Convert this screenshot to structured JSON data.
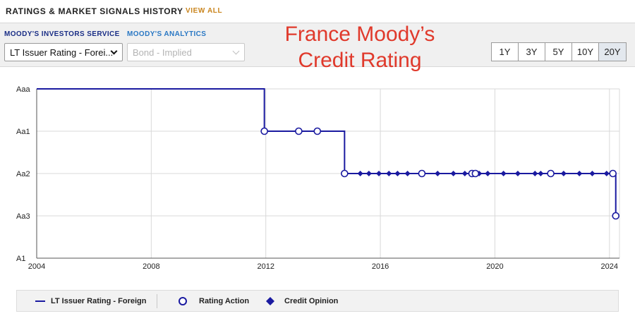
{
  "header": {
    "title": "RATINGS & MARKET SIGNALS HISTORY",
    "view_all": "VIEW ALL"
  },
  "filters": {
    "investors_label": "MOODY'S INVESTORS SERVICE",
    "analytics_label": "MOODY'S ANALYTICS",
    "rating_select": "LT Issuer Rating - Forei...",
    "market_select": "Bond - Implied"
  },
  "overlay": {
    "line1": "France Moody’s",
    "line2": "Credit Rating"
  },
  "periods": [
    "1Y",
    "3Y",
    "5Y",
    "10Y",
    "20Y"
  ],
  "active_period": "20Y",
  "colors": {
    "series": "#1a1aa0",
    "accent": "#c9841c",
    "annotation": "#e0392b",
    "grid": "#d9d9d9"
  },
  "chart_data": {
    "type": "line",
    "y_categories": [
      "Aaa",
      "Aa1",
      "Aa2",
      "Aa3",
      "A1"
    ],
    "x_ticks": [
      "2004",
      "2008",
      "2012",
      "2016",
      "2020",
      "2024"
    ],
    "xlim": [
      2004.0,
      2024.35
    ],
    "grid": true,
    "legend_position": "bottom",
    "series": [
      {
        "name": "LT Issuer Rating - Foreign",
        "step_points": [
          {
            "x": 2004.0,
            "y": "Aaa"
          },
          {
            "x": 2011.95,
            "y": "Aaa"
          },
          {
            "x": 2011.95,
            "y": "Aa1"
          },
          {
            "x": 2014.75,
            "y": "Aa1"
          },
          {
            "x": 2014.75,
            "y": "Aa2"
          },
          {
            "x": 2024.22,
            "y": "Aa2"
          },
          {
            "x": 2024.22,
            "y": "Aa3"
          }
        ]
      }
    ],
    "rating_actions": [
      {
        "x": 2011.95,
        "y": "Aa1"
      },
      {
        "x": 2013.15,
        "y": "Aa1"
      },
      {
        "x": 2013.8,
        "y": "Aa1"
      },
      {
        "x": 2014.75,
        "y": "Aa2"
      },
      {
        "x": 2017.45,
        "y": "Aa2"
      },
      {
        "x": 2019.2,
        "y": "Aa2"
      },
      {
        "x": 2019.32,
        "y": "Aa2"
      },
      {
        "x": 2021.95,
        "y": "Aa2"
      },
      {
        "x": 2024.12,
        "y": "Aa2"
      },
      {
        "x": 2024.22,
        "y": "Aa3"
      }
    ],
    "credit_opinions": [
      {
        "x": 2015.3,
        "y": "Aa2"
      },
      {
        "x": 2015.6,
        "y": "Aa2"
      },
      {
        "x": 2015.95,
        "y": "Aa2"
      },
      {
        "x": 2016.3,
        "y": "Aa2"
      },
      {
        "x": 2016.6,
        "y": "Aa2"
      },
      {
        "x": 2016.95,
        "y": "Aa2"
      },
      {
        "x": 2017.45,
        "y": "Aa2"
      },
      {
        "x": 2018.0,
        "y": "Aa2"
      },
      {
        "x": 2018.55,
        "y": "Aa2"
      },
      {
        "x": 2018.95,
        "y": "Aa2"
      },
      {
        "x": 2019.2,
        "y": "Aa2"
      },
      {
        "x": 2019.32,
        "y": "Aa2"
      },
      {
        "x": 2019.45,
        "y": "Aa2"
      },
      {
        "x": 2019.75,
        "y": "Aa2"
      },
      {
        "x": 2020.3,
        "y": "Aa2"
      },
      {
        "x": 2020.8,
        "y": "Aa2"
      },
      {
        "x": 2021.4,
        "y": "Aa2"
      },
      {
        "x": 2021.6,
        "y": "Aa2"
      },
      {
        "x": 2021.95,
        "y": "Aa2"
      },
      {
        "x": 2022.4,
        "y": "Aa2"
      },
      {
        "x": 2022.95,
        "y": "Aa2"
      },
      {
        "x": 2023.4,
        "y": "Aa2"
      },
      {
        "x": 2023.9,
        "y": "Aa2"
      },
      {
        "x": 2024.12,
        "y": "Aa2"
      }
    ]
  },
  "legend": {
    "line_label": "LT Issuer Rating - Foreign",
    "action_label": "Rating Action",
    "opinion_label": "Credit Opinion"
  }
}
